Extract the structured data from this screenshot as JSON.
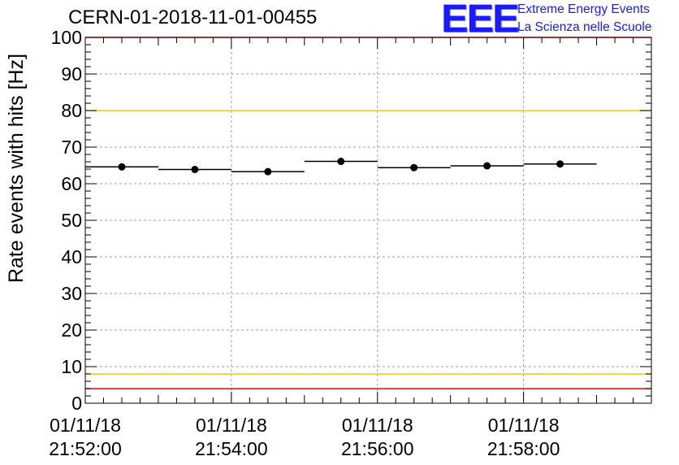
{
  "title": "CERN-01-2018-11-01-00455",
  "logo": {
    "mark": "EEE",
    "line1": "Extreme Energy Events",
    "line2": "La Scienza nelle Scuole",
    "color": "#1a1aff"
  },
  "chart_data": {
    "type": "scatter",
    "ylabel": "Rate events with hits [Hz]",
    "xlabel": "",
    "ylim": [
      0,
      100
    ],
    "y_ticks": [
      0,
      10,
      20,
      30,
      40,
      50,
      60,
      70,
      80,
      90,
      100
    ],
    "xlim": [
      "2018-11-01 21:52:00",
      "2018-11-01 21:59:45"
    ],
    "x_ticks": [
      {
        "date": "01/11/18",
        "time": "21:52:00"
      },
      {
        "date": "01/11/18",
        "time": "21:54:00"
      },
      {
        "date": "01/11/18",
        "time": "21:56:00"
      },
      {
        "date": "01/11/18",
        "time": "21:58:00"
      }
    ],
    "grid": true,
    "series": [
      {
        "points": [
          {
            "x_start": "21:52:00",
            "x_end": "21:53:00",
            "x": "21:52:30",
            "y": 64.6
          },
          {
            "x_start": "21:53:00",
            "x_end": "21:54:00",
            "x": "21:53:30",
            "y": 63.9
          },
          {
            "x_start": "21:54:00",
            "x_end": "21:55:00",
            "x": "21:54:30",
            "y": 63.3
          },
          {
            "x_start": "21:55:00",
            "x_end": "21:56:00",
            "x": "21:55:30",
            "y": 66.1
          },
          {
            "x_start": "21:56:00",
            "x_end": "21:57:00",
            "x": "21:56:30",
            "y": 64.4
          },
          {
            "x_start": "21:57:00",
            "x_end": "21:58:00",
            "x": "21:57:30",
            "y": 64.9
          },
          {
            "x_start": "21:58:00",
            "x_end": "21:59:00",
            "x": "21:58:30",
            "y": 65.4
          }
        ]
      }
    ],
    "reference_lines": [
      {
        "y": 100,
        "color": "#ff0000"
      },
      {
        "y": 80,
        "color": "#f0c800"
      },
      {
        "y": 8,
        "color": "#f0c800"
      },
      {
        "y": 4,
        "color": "#ff0000"
      }
    ]
  }
}
